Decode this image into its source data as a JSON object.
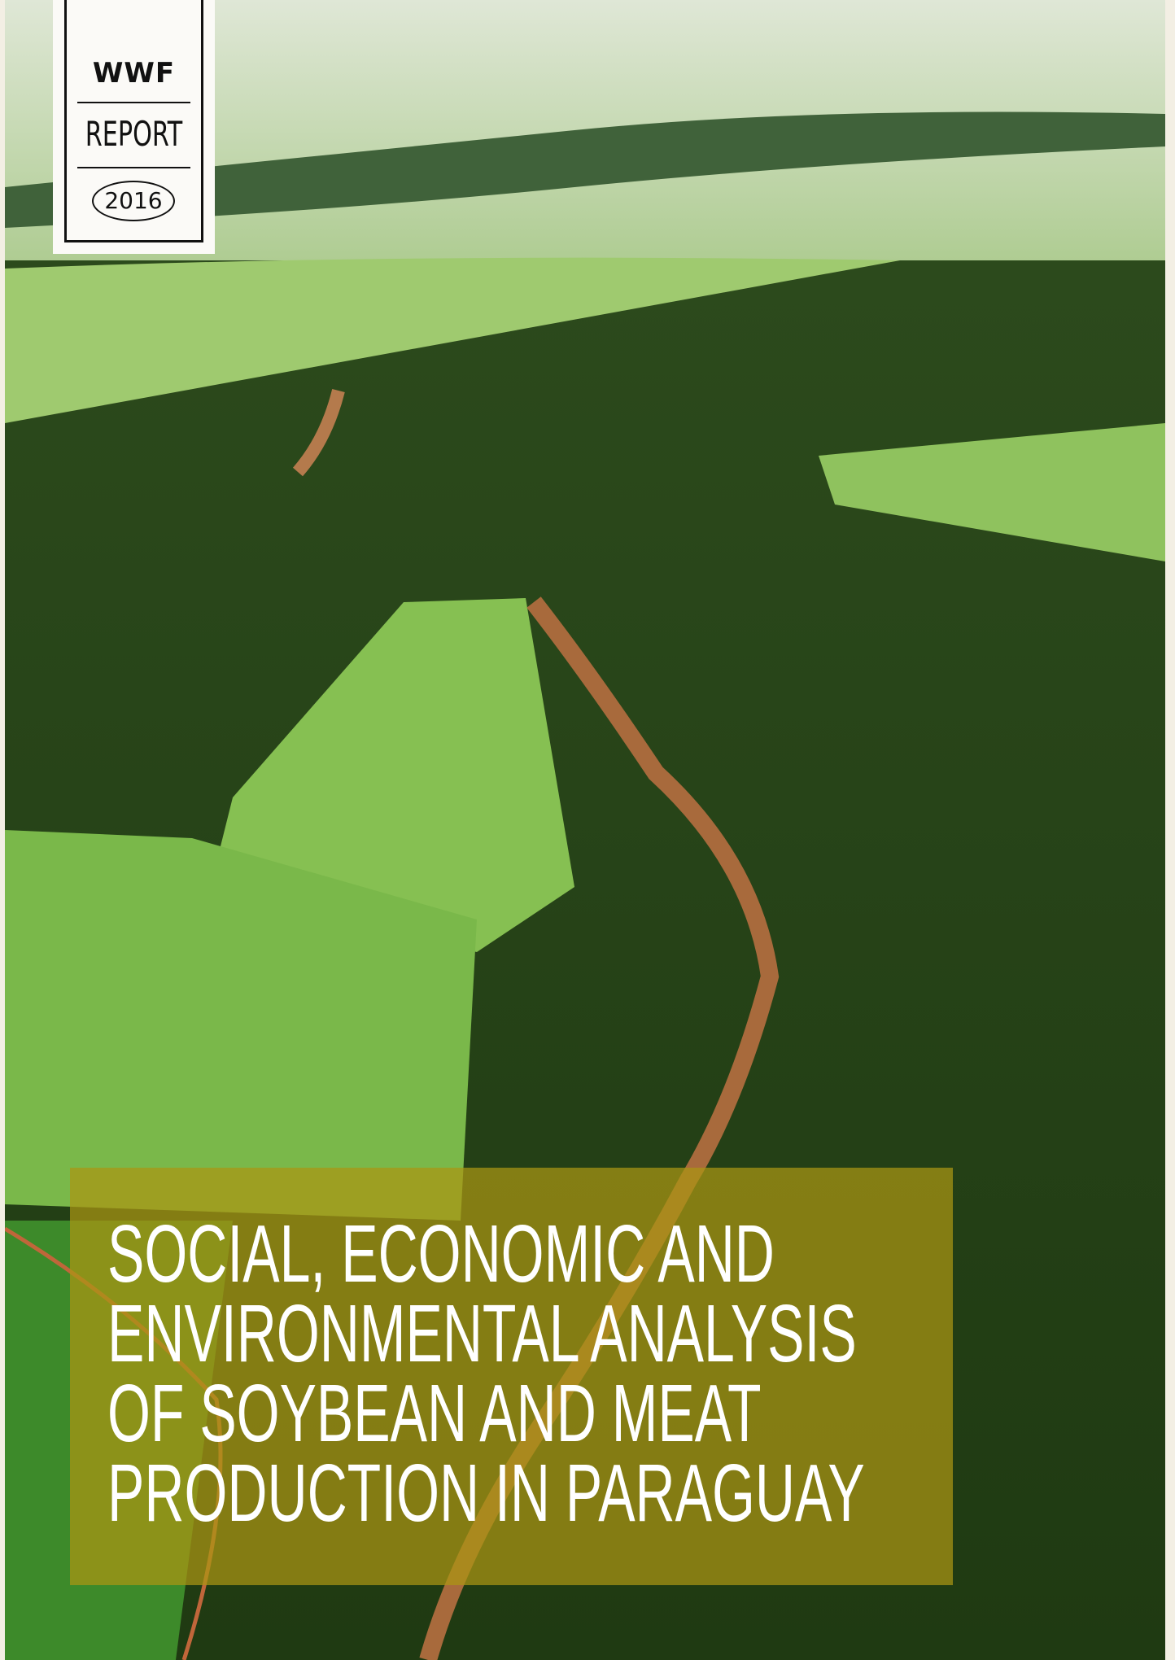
{
  "logo": {
    "brand": "WWF",
    "label": "REPORT",
    "year": "2016"
  },
  "title": [
    "SOCIAL, ECONOMIC AND",
    "ENVIRONMENTAL ANALYSIS",
    "OF SOYBEAN AND MEAT",
    "PRODUCTION IN PARAGUAY"
  ]
}
